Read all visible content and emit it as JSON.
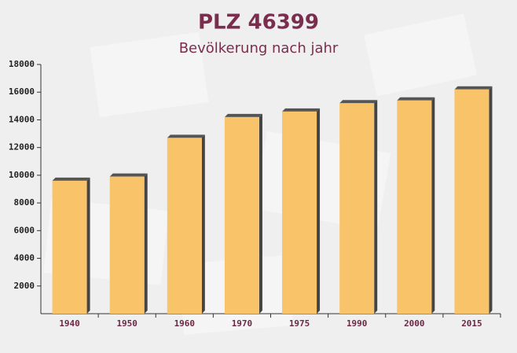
{
  "chart_data": {
    "type": "bar",
    "title": "PLZ 46399",
    "subtitle": "Bevölkerung nach jahr",
    "categories": [
      "1940",
      "1950",
      "1960",
      "1970",
      "1975",
      "1990",
      "2000",
      "2015"
    ],
    "values": [
      9600,
      9900,
      12700,
      14200,
      14600,
      15200,
      15400,
      16200
    ],
    "color": "#f9c36a",
    "ylim": [
      0,
      18000
    ],
    "yticks": [
      2000,
      4000,
      6000,
      8000,
      10000,
      12000,
      14000,
      16000,
      18000
    ],
    "grid": false
  }
}
